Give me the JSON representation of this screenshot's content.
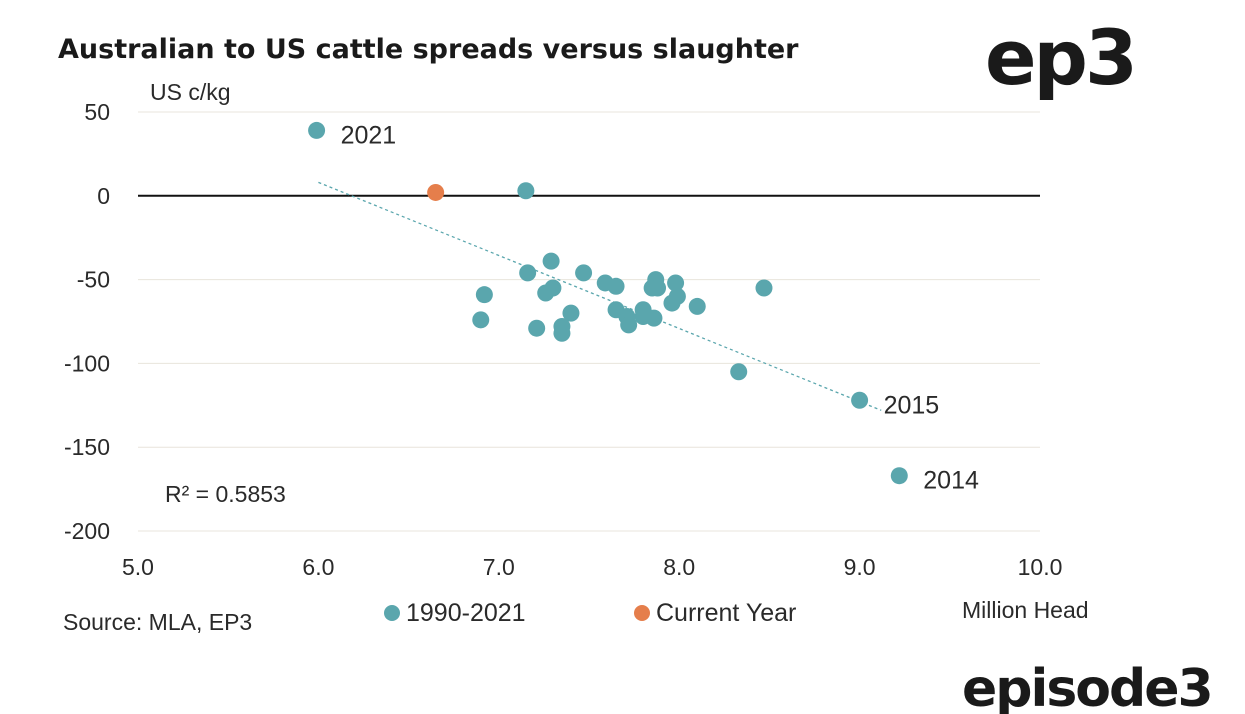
{
  "chart_data": {
    "type": "scatter",
    "title": "Australian to US cattle spreads versus slaughter",
    "ylabel": "US c/kg",
    "xlabel": "Million Head",
    "xlim": [
      5.0,
      10.0
    ],
    "ylim": [
      -200,
      50
    ],
    "x_ticks": [
      "5.0",
      "6.0",
      "7.0",
      "8.0",
      "9.0",
      "10.0"
    ],
    "y_ticks": [
      "50",
      "0",
      "-50",
      "-100",
      "-150",
      "-200"
    ],
    "grid": "horizontal",
    "zero_line": true,
    "legend_position": "bottom",
    "series": [
      {
        "name": "1990-2021",
        "color": "#5aa6ad",
        "points": [
          {
            "x": 5.99,
            "y": 39
          },
          {
            "x": 7.15,
            "y": 3
          },
          {
            "x": 7.16,
            "y": -46
          },
          {
            "x": 7.29,
            "y": -39
          },
          {
            "x": 7.47,
            "y": -46
          },
          {
            "x": 6.9,
            "y": -74
          },
          {
            "x": 6.92,
            "y": -59
          },
          {
            "x": 7.21,
            "y": -79
          },
          {
            "x": 7.26,
            "y": -58
          },
          {
            "x": 7.3,
            "y": -55
          },
          {
            "x": 7.35,
            "y": -78
          },
          {
            "x": 7.35,
            "y": -82
          },
          {
            "x": 7.4,
            "y": -70
          },
          {
            "x": 7.59,
            "y": -52
          },
          {
            "x": 7.65,
            "y": -54
          },
          {
            "x": 7.65,
            "y": -68
          },
          {
            "x": 7.71,
            "y": -72
          },
          {
            "x": 7.72,
            "y": -77
          },
          {
            "x": 7.8,
            "y": -68
          },
          {
            "x": 7.8,
            "y": -72
          },
          {
            "x": 7.85,
            "y": -55
          },
          {
            "x": 7.87,
            "y": -50
          },
          {
            "x": 7.88,
            "y": -55
          },
          {
            "x": 7.86,
            "y": -73
          },
          {
            "x": 7.96,
            "y": -64
          },
          {
            "x": 7.98,
            "y": -52
          },
          {
            "x": 7.99,
            "y": -60
          },
          {
            "x": 8.1,
            "y": -66
          },
          {
            "x": 8.47,
            "y": -55
          },
          {
            "x": 8.33,
            "y": -105
          },
          {
            "x": 9.0,
            "y": -122
          },
          {
            "x": 9.22,
            "y": -167
          }
        ]
      },
      {
        "name": "Current Year",
        "color": "#e57e4b",
        "points": [
          {
            "x": 6.65,
            "y": 2
          }
        ]
      }
    ],
    "trendline": {
      "x": [
        6.0,
        9.12
      ],
      "y": [
        8,
        -128
      ],
      "style": "dashed",
      "color": "#5aa6ad"
    },
    "annotations": [
      {
        "text": "2021",
        "x": 5.99,
        "y": 39
      },
      {
        "text": "2015",
        "x": 9.0,
        "y": -122
      },
      {
        "text": "2014",
        "x": 9.22,
        "y": -167
      }
    ],
    "r_squared_label": "R² = 0.5853",
    "source": "Source: MLA, EP3"
  },
  "logos": {
    "top": "ep3",
    "bottom": "episode3"
  }
}
